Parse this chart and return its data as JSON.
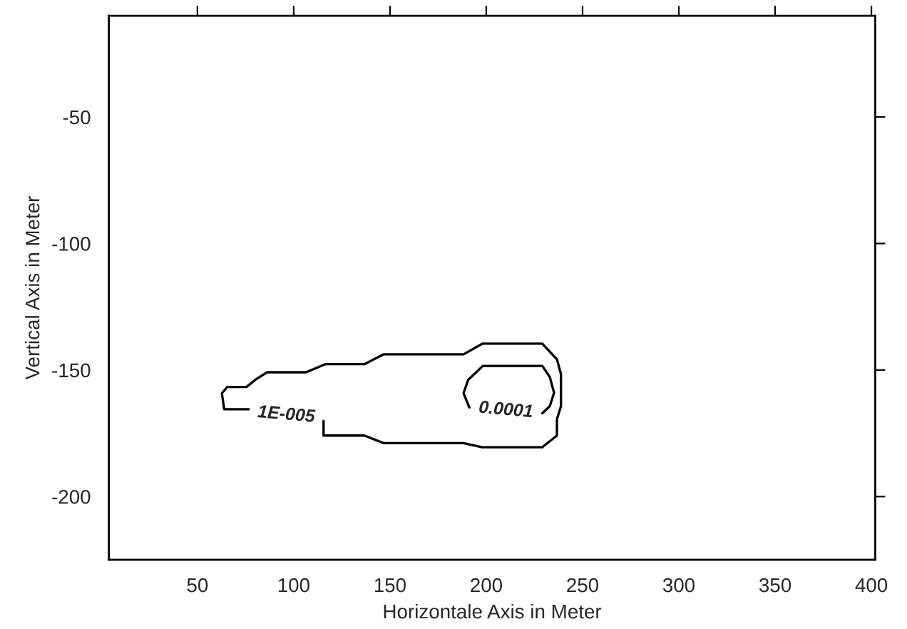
{
  "chart_data": {
    "type": "line",
    "xlabel": "Horizontale Axis in Meter",
    "ylabel": "Vertical Axis in Meter",
    "xlim": [
      4,
      402
    ],
    "ylim": [
      -225,
      -10
    ],
    "xticks": [
      50,
      100,
      150,
      200,
      250,
      300,
      350,
      400
    ],
    "yticks": [
      -50,
      -100,
      -150,
      -200
    ],
    "grid": false,
    "legend": false,
    "series": [
      {
        "color": "#000000",
        "x": [
          115.5,
          115.5,
          136.7,
          146.7,
          188.2,
          197.9,
          229.1,
          236.7,
          236.7,
          238.8,
          238.8,
          236.7,
          229.1,
          197.9,
          188.2,
          146.7,
          136.7,
          116.4,
          106.4,
          86.1,
          80,
          75.5,
          65.5,
          62.7,
          63.9,
          76.7
        ],
        "values": [
          -170.1,
          -175.9,
          -175.9,
          -178.9,
          -178.9,
          -180.5,
          -180.5,
          -175.9,
          -169.4,
          -164.3,
          -151.6,
          -145.8,
          -139.6,
          -139.6,
          -143.8,
          -143.8,
          -147.7,
          -147.7,
          -150.9,
          -150.9,
          -153.9,
          -156.7,
          -156.7,
          -159.2,
          -165.5,
          -165.5
        ]
      },
      {
        "color": "#000000",
        "x": [
          191.2,
          188.2,
          190.6,
          198.2,
          229.1,
          233,
          235.2,
          233,
          229.1
        ],
        "values": [
          -164.8,
          -159.2,
          -153.9,
          -148.4,
          -148.4,
          -152.8,
          -159.0,
          -164.3,
          -167.1
        ]
      }
    ],
    "annotations": [
      "1E-005",
      "0.0001"
    ]
  }
}
